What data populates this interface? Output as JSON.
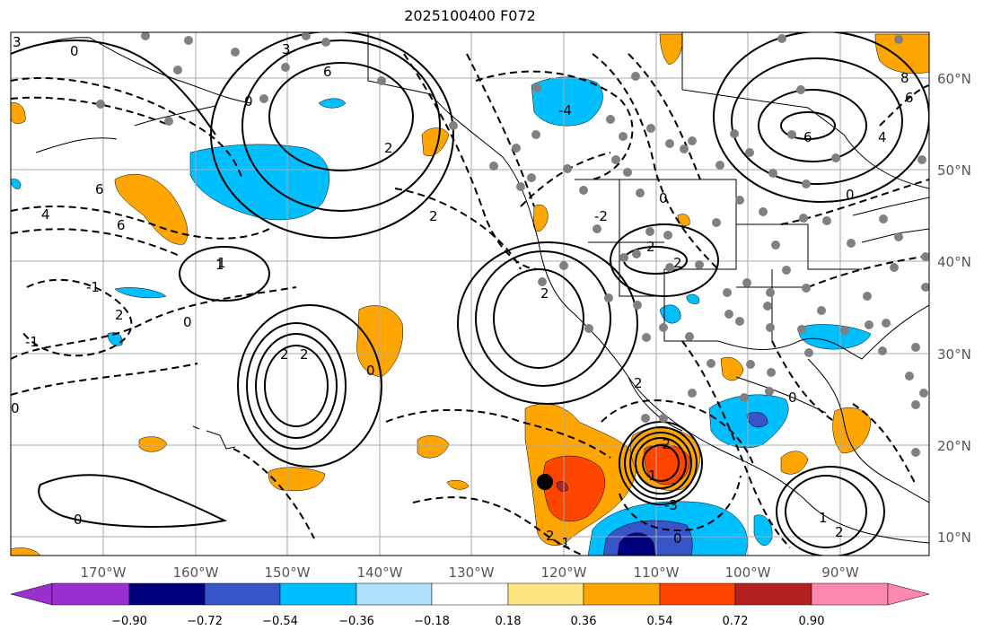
{
  "title": "2025100400 F072",
  "lon_labels": [
    "170°W",
    "160°W",
    "150°W",
    "140°W",
    "130°W",
    "120°W",
    "110°W",
    "100°W",
    "90°W"
  ],
  "lat_labels": [
    "60°N",
    "50°N",
    "40°N",
    "30°N",
    "20°N",
    "10°N"
  ],
  "colorbar": {
    "ticks": [
      "−0.90",
      "−0.72",
      "−0.54",
      "−0.36",
      "−0.18",
      "0.18",
      "0.36",
      "0.54",
      "0.72",
      "0.90"
    ],
    "colors": [
      "#9b30d0",
      "#00007f",
      "#3755c8",
      "#00bfff",
      "#aee2ff",
      "#ffffff",
      "#ffe682",
      "#ffa500",
      "#ff4500",
      "#b22222",
      "#ff88b0"
    ]
  },
  "contour_labels": [
    "3",
    "0",
    "6",
    "3",
    "0",
    "2",
    "6",
    "1",
    "6",
    "4",
    "8",
    "6",
    "-4",
    "4",
    "6",
    "2",
    "2",
    "2",
    "2",
    "-1",
    "1",
    "0",
    "2",
    "0",
    "-1",
    "0",
    "2",
    "2",
    "-2",
    "1",
    "0",
    "-3",
    "0",
    "1",
    "2",
    "0",
    "2",
    "-1",
    "2",
    "-2",
    "0",
    "0"
  ],
  "station_marker": "black-dot"
}
